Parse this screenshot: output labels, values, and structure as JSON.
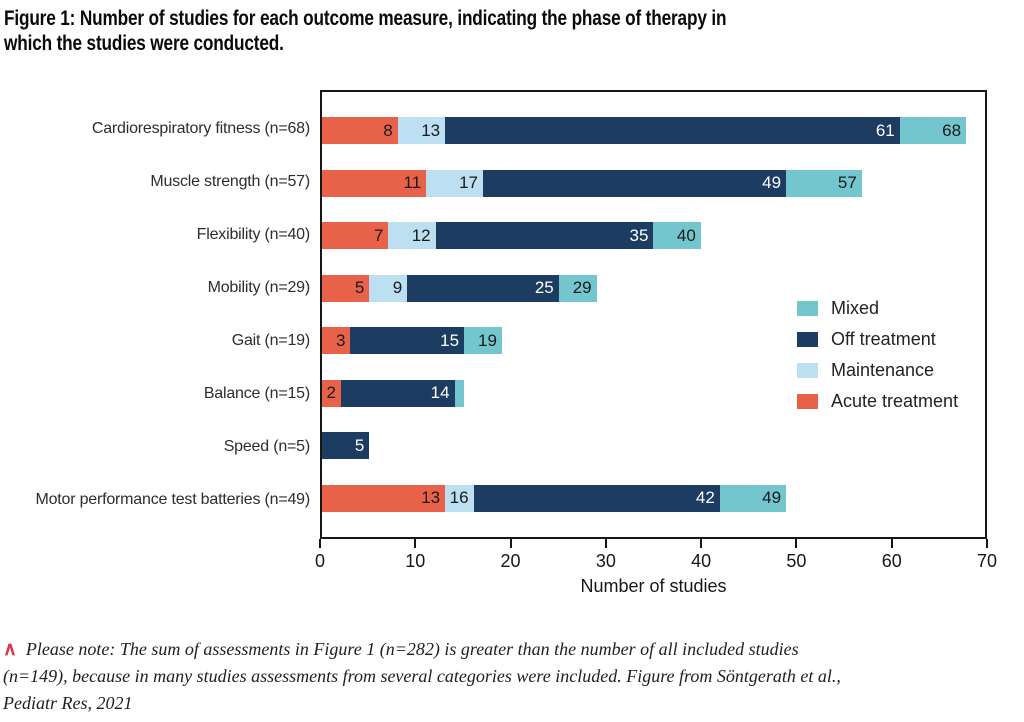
{
  "title": {
    "line1": "Figure 1: Number of studies for each outcome measure, indicating the phase of therapy in",
    "line2": "which the studies were conducted."
  },
  "chart_data": {
    "type": "bar",
    "orientation": "horizontal",
    "stacked": true,
    "xlabel": "Number of studies",
    "xlim": [
      0,
      70
    ],
    "x_ticks": [
      0,
      10,
      20,
      30,
      40,
      50,
      60,
      70
    ],
    "grid": false,
    "segment_order": [
      "Acute treatment",
      "Maintenance",
      "Off treatment",
      "Mixed"
    ],
    "series_colors": {
      "Acute treatment": "#e86149",
      "Maintenance": "#bddff2",
      "Off treatment": "#1c3c62",
      "Mixed": "#74c6ce"
    },
    "label_color_on_dark": "#ffffff",
    "label_color_on_light": "#1a1a1a",
    "legend": {
      "position": "inside-right",
      "entries": [
        {
          "label": "Mixed",
          "color": "#74c6ce"
        },
        {
          "label": "Off treatment",
          "color": "#1c3c62"
        },
        {
          "label": "Maintenance",
          "color": "#bddff2"
        },
        {
          "label": "Acute treatment",
          "color": "#e86149"
        }
      ]
    },
    "bars": [
      {
        "category": "Cardiorespiratory fitness (n=68)",
        "total": 68,
        "segments": [
          {
            "phase": "Acute treatment",
            "value": 8,
            "label": "8"
          },
          {
            "phase": "Maintenance",
            "value": 5,
            "label": "13"
          },
          {
            "phase": "Off treatment",
            "value": 48,
            "label": "61"
          },
          {
            "phase": "Mixed",
            "value": 7,
            "label": "68"
          }
        ]
      },
      {
        "category": "Muscle strength (n=57)",
        "total": 57,
        "segments": [
          {
            "phase": "Acute treatment",
            "value": 11,
            "label": "11"
          },
          {
            "phase": "Maintenance",
            "value": 6,
            "label": "17"
          },
          {
            "phase": "Off treatment",
            "value": 32,
            "label": "49"
          },
          {
            "phase": "Mixed",
            "value": 8,
            "label": "57"
          }
        ]
      },
      {
        "category": "Flexibility (n=40)",
        "total": 40,
        "segments": [
          {
            "phase": "Acute treatment",
            "value": 7,
            "label": "7"
          },
          {
            "phase": "Maintenance",
            "value": 5,
            "label": "12"
          },
          {
            "phase": "Off treatment",
            "value": 23,
            "label": "35"
          },
          {
            "phase": "Mixed",
            "value": 5,
            "label": "40"
          }
        ]
      },
      {
        "category": "Mobility (n=29)",
        "total": 29,
        "segments": [
          {
            "phase": "Acute treatment",
            "value": 5,
            "label": "5"
          },
          {
            "phase": "Maintenance",
            "value": 4,
            "label": "9"
          },
          {
            "phase": "Off treatment",
            "value": 16,
            "label": "25"
          },
          {
            "phase": "Mixed",
            "value": 4,
            "label": "29"
          }
        ]
      },
      {
        "category": "Gait (n=19)",
        "total": 19,
        "segments": [
          {
            "phase": "Acute treatment",
            "value": 3,
            "label": "3"
          },
          {
            "phase": "Maintenance",
            "value": 0,
            "label": null
          },
          {
            "phase": "Off treatment",
            "value": 12,
            "label": "15"
          },
          {
            "phase": "Mixed",
            "value": 4,
            "label": "19"
          }
        ]
      },
      {
        "category": "Balance (n=15)",
        "total": 15,
        "segments": [
          {
            "phase": "Acute treatment",
            "value": 2,
            "label": "2"
          },
          {
            "phase": "Maintenance",
            "value": 0,
            "label": null
          },
          {
            "phase": "Off treatment",
            "value": 12,
            "label": "14"
          },
          {
            "phase": "Mixed",
            "value": 1,
            "label": null
          }
        ]
      },
      {
        "category": "Speed (n=5)",
        "total": 5,
        "segments": [
          {
            "phase": "Acute treatment",
            "value": 0,
            "label": null
          },
          {
            "phase": "Maintenance",
            "value": 0,
            "label": null
          },
          {
            "phase": "Off treatment",
            "value": 5,
            "label": "5"
          },
          {
            "phase": "Mixed",
            "value": 0,
            "label": null
          }
        ]
      },
      {
        "category": "Motor performance test batteries (n=49)",
        "total": 49,
        "segments": [
          {
            "phase": "Acute treatment",
            "value": 13,
            "label": "13"
          },
          {
            "phase": "Maintenance",
            "value": 3,
            "label": "16"
          },
          {
            "phase": "Off treatment",
            "value": 26,
            "label": "42"
          },
          {
            "phase": "Mixed",
            "value": 7,
            "label": "49"
          }
        ]
      }
    ]
  },
  "footnote": {
    "icon_glyph": "∧",
    "lines": [
      "Please note: The sum of assessments in Figure 1 (n=282) is greater than the number of all included studies",
      "(n=149), because in many studies assessments from several categories were included. Figure from Söntgerath et al.,",
      "Pediatr Res, 2021"
    ]
  }
}
